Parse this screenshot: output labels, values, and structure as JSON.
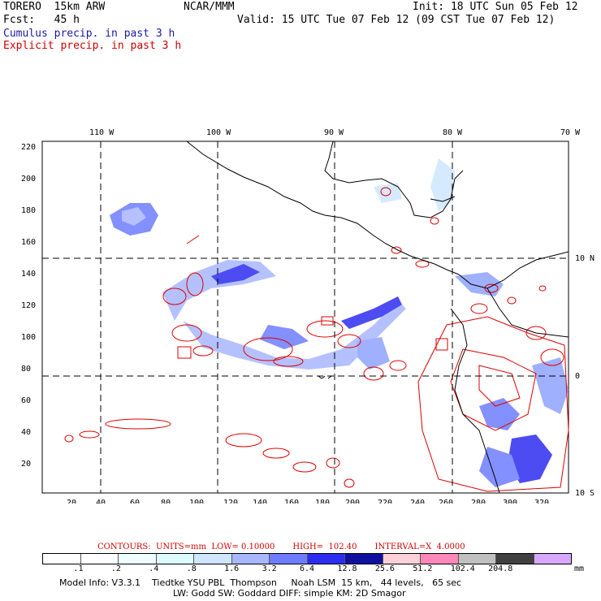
{
  "header": {
    "model": "TORERO  15km ARW",
    "center": "NCAR/MMM",
    "init": "Init: 18 UTC Sun 05 Feb 12",
    "fcst": "Fcst:   45 h",
    "valid": "Valid: 15 UTC Tue 07 Feb 12 (09 CST Tue 07 Feb 12)",
    "field1": "Cumulus precip. in past 3 h",
    "field2": "Explicit precip. in past 3 h"
  },
  "map": {
    "lon_labels": [
      "110 W",
      "100 W",
      "90 W",
      "80 W",
      "70 W"
    ],
    "lat_labels": [
      "10 N",
      "0",
      "10 S"
    ],
    "y_ticks": [
      "220",
      "200",
      "180",
      "160",
      "140",
      "120",
      "100",
      "80",
      "60",
      "40",
      "20"
    ],
    "x_ticks": [
      "20",
      "40",
      "60",
      "80",
      "100",
      "120",
      "140",
      "160",
      "180",
      "200",
      "220",
      "240",
      "260",
      "280",
      "300",
      "320"
    ],
    "colors": {
      "cumulus": "#2a3fe0",
      "cumulus_light": "#8fa3ff",
      "explicit": "#dd0000",
      "coast": "#000000",
      "grid": "#000000"
    }
  },
  "legend": {
    "contours": "CONTOURS:  UNITS=mm  LOW= 0.10000",
    "high": "HIGH=  102.40",
    "interval": "INTERVAL=X  4.0000",
    "units": "mm",
    "levels": [
      ".1",
      ".2",
      ".4",
      ".8",
      "1.6",
      "3.2",
      "6.4",
      "12.8",
      "25.6",
      "51.2",
      "102.4",
      "204.8"
    ],
    "colors": [
      "#ffffff",
      "#ffffff",
      "#eefeff",
      "#ddfbff",
      "#cfe6ff",
      "#a9b7ff",
      "#6e7dff",
      "#2d2df0",
      "#1010a0",
      "#ffd0d8",
      "#ff88b8",
      "#c0c0c0",
      "#404040",
      "#d8a8ff"
    ]
  },
  "footer": {
    "line1": "Model Info: V3.3.1    Tiedtke YSU PBL  Thompson     Noah LSM  15 km,   44 levels,   65 sec",
    "line2": "LW: Godd SW: Goddard DIFF: simple KM: 2D Smagor"
  }
}
